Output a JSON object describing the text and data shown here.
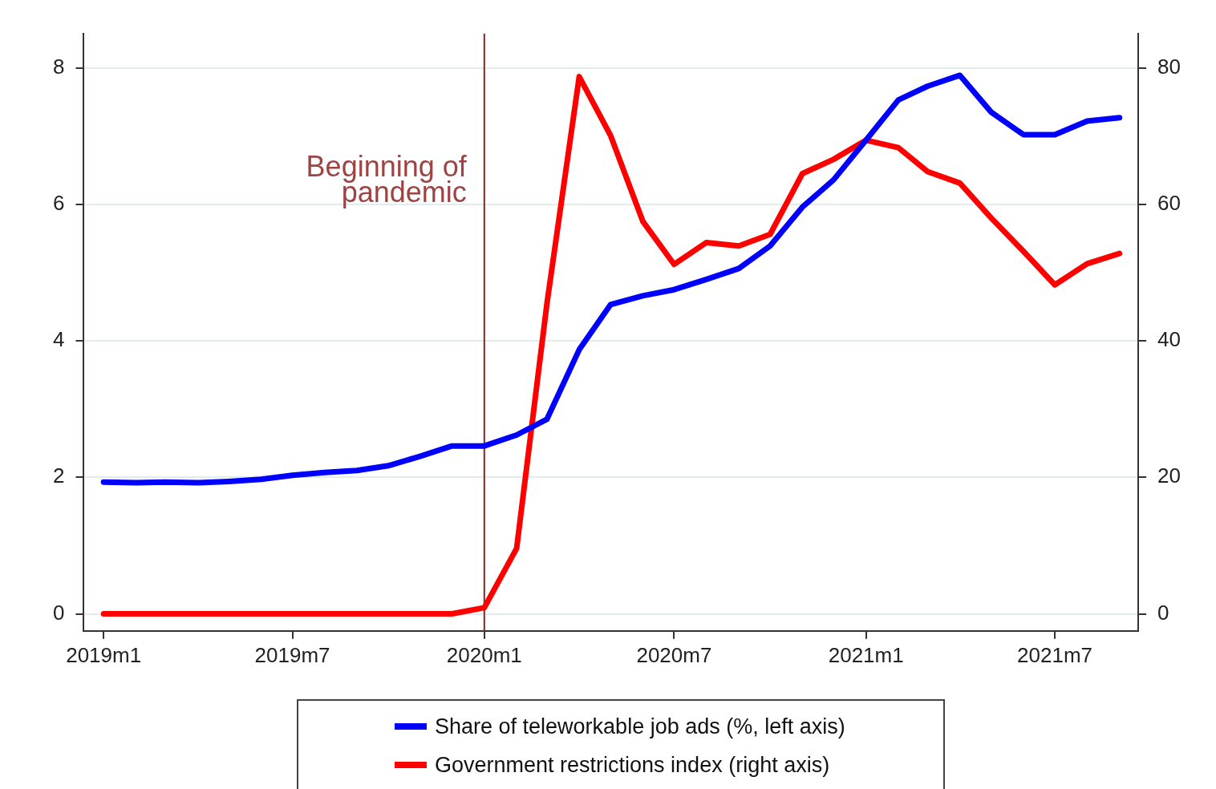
{
  "chart_data": {
    "type": "line",
    "x": [
      "2019-01",
      "2019-02",
      "2019-03",
      "2019-04",
      "2019-05",
      "2019-06",
      "2019-07",
      "2019-08",
      "2019-09",
      "2019-10",
      "2019-11",
      "2019-12",
      "2020-01",
      "2020-02",
      "2020-03",
      "2020-04",
      "2020-05",
      "2020-06",
      "2020-07",
      "2020-08",
      "2020-09",
      "2020-10",
      "2020-11",
      "2020-12",
      "2021-01",
      "2021-02",
      "2021-03",
      "2021-04",
      "2021-05",
      "2021-06",
      "2021-07",
      "2021-08",
      "2021-09"
    ],
    "series": [
      {
        "name": "Share of teleworkable job ads (%, left axis)",
        "color": "#0000ff",
        "values": [
          1.93,
          1.92,
          1.93,
          1.92,
          1.94,
          1.97,
          2.03,
          2.07,
          2.1,
          2.17,
          2.31,
          2.46,
          2.46,
          2.62,
          2.85,
          3.87,
          4.53,
          4.66,
          4.75,
          4.9,
          5.06,
          5.39,
          5.96,
          6.36,
          6.94,
          7.53,
          7.73,
          7.89,
          7.35,
          7.02,
          7.02,
          7.22,
          7.27
        ]
      },
      {
        "name": "Government restrictions index (right axis)",
        "color": "#ff0000",
        "axis": "y2",
        "values": [
          0,
          0,
          0,
          0,
          0,
          0,
          0,
          0,
          0,
          0,
          0,
          0,
          0.9,
          9.6,
          45.4,
          78.7,
          70.1,
          57.5,
          51.2,
          54.4,
          53.9,
          55.6,
          64.5,
          66.6,
          69.4,
          68.3,
          64.8,
          63.1,
          58,
          53.1,
          48.2,
          51.3,
          52.8
        ]
      }
    ],
    "xlim": [
      "2018-12-13",
      "2021-09-19"
    ],
    "xticks": [
      {
        "value": "2019-01",
        "label": "2019m1"
      },
      {
        "value": "2019-07",
        "label": "2019m7"
      },
      {
        "value": "2020-01",
        "label": "2020m1"
      },
      {
        "value": "2020-07",
        "label": "2020m7"
      },
      {
        "value": "2021-01",
        "label": "2021m1"
      },
      {
        "value": "2021-07",
        "label": "2021m7"
      }
    ],
    "ylim": [
      -0.25,
      8.5
    ],
    "yticks": [
      0,
      2,
      4,
      6,
      8
    ],
    "y2lim": [
      -2.5,
      85
    ],
    "y2ticks": [
      0,
      20,
      40,
      60,
      80
    ],
    "ref_lines": [
      {
        "axis": "x",
        "value": "2020-01",
        "label": "Beginning of\npandemic",
        "color": "#8b2323"
      }
    ],
    "grid": "y",
    "legend": "bottom",
    "line_style": "solid",
    "marker": "none"
  }
}
